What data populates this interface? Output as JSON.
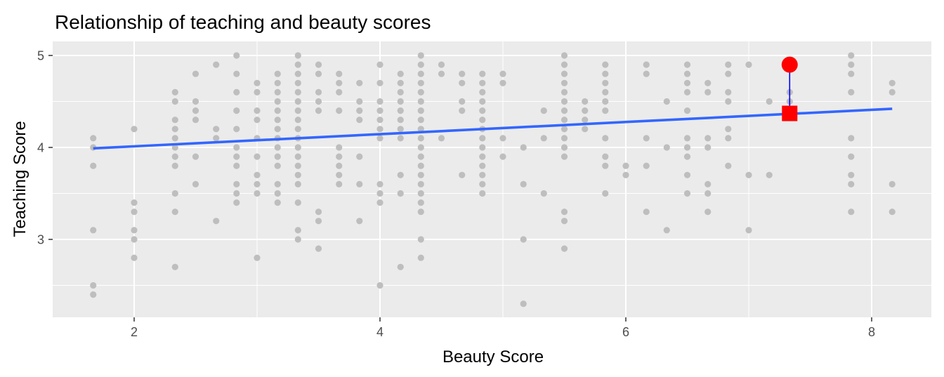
{
  "chart_data": {
    "type": "scatter",
    "title": "Relationship of teaching and beauty scores",
    "xlabel": "Beauty Score",
    "ylabel": "Teaching Score",
    "xlim": [
      1.34,
      8.5
    ],
    "ylim": [
      2.15,
      5.15
    ],
    "xticks": [
      2,
      4,
      6,
      8
    ],
    "yticks": [
      3,
      4,
      5
    ],
    "grid": true,
    "legend": "none",
    "colors": {
      "panel": "#ebebeb",
      "grid": "#ffffff",
      "points": "#bebebe",
      "fit_line": "#3366ff",
      "highlight_observed": "#ff0000",
      "highlight_fitted": "#ff0000",
      "residual_arrow": "#0000ff"
    },
    "columns": [
      {
        "x": 1.667,
        "y": [
          4.1,
          4.0,
          3.8,
          3.1,
          2.5,
          2.4
        ]
      },
      {
        "x": 2.0,
        "y": [
          4.2,
          3.4,
          3.3,
          3.1,
          3.0,
          2.8
        ]
      },
      {
        "x": 2.333,
        "y": [
          4.6,
          4.5,
          4.3,
          4.2,
          4.1,
          4.0,
          3.9,
          3.8,
          3.5,
          3.3,
          2.7
        ]
      },
      {
        "x": 2.5,
        "y": [
          4.8,
          4.5,
          4.4,
          4.3,
          3.9,
          3.6
        ]
      },
      {
        "x": 2.667,
        "y": [
          4.9,
          4.2,
          4.1,
          3.2
        ]
      },
      {
        "x": 2.833,
        "y": [
          5.0,
          4.8,
          4.6,
          4.4,
          4.2,
          4.0,
          3.9,
          3.8,
          3.6,
          3.5,
          3.4
        ]
      },
      {
        "x": 3.0,
        "y": [
          4.7,
          4.6,
          4.4,
          4.3,
          4.1,
          3.9,
          3.7,
          3.6,
          3.5,
          2.8
        ]
      },
      {
        "x": 3.167,
        "y": [
          4.8,
          4.7,
          4.6,
          4.5,
          4.4,
          4.3,
          4.2,
          4.1,
          4.0,
          3.9,
          3.8,
          3.6,
          3.5,
          3.4
        ]
      },
      {
        "x": 3.333,
        "y": [
          5.0,
          4.9,
          4.8,
          4.7,
          4.6,
          4.5,
          4.4,
          4.3,
          4.2,
          4.1,
          4.0,
          3.9,
          3.8,
          3.7,
          3.6,
          3.4,
          3.1,
          3.0
        ]
      },
      {
        "x": 3.5,
        "y": [
          4.9,
          4.8,
          4.6,
          4.5,
          4.4,
          3.3,
          3.2,
          2.9
        ]
      },
      {
        "x": 3.667,
        "y": [
          4.8,
          4.7,
          4.6,
          4.4,
          4.0,
          3.9,
          3.8,
          3.7,
          3.6
        ]
      },
      {
        "x": 3.833,
        "y": [
          4.7,
          4.5,
          4.4,
          4.3,
          3.9,
          3.6,
          3.2
        ]
      },
      {
        "x": 4.0,
        "y": [
          4.9,
          4.7,
          4.5,
          4.4,
          4.3,
          4.2,
          4.1,
          3.6,
          3.5,
          3.4,
          2.5
        ]
      },
      {
        "x": 4.167,
        "y": [
          4.8,
          4.7,
          4.6,
          4.5,
          4.4,
          4.3,
          4.2,
          4.1,
          3.7,
          3.5,
          2.7
        ]
      },
      {
        "x": 4.333,
        "y": [
          5.0,
          4.9,
          4.8,
          4.7,
          4.6,
          4.5,
          4.4,
          4.3,
          4.2,
          4.1,
          4.0,
          3.9,
          3.8,
          3.7,
          3.6,
          3.5,
          3.4,
          3.3,
          3.0,
          2.8
        ]
      },
      {
        "x": 4.5,
        "y": [
          4.9,
          4.8,
          4.1
        ]
      },
      {
        "x": 4.667,
        "y": [
          4.8,
          4.7,
          4.5,
          4.4,
          3.7
        ]
      },
      {
        "x": 4.833,
        "y": [
          4.8,
          4.7,
          4.6,
          4.5,
          4.4,
          4.3,
          4.2,
          4.1,
          4.0,
          3.9,
          3.8,
          3.7,
          3.6,
          3.5
        ]
      },
      {
        "x": 5.0,
        "y": [
          4.8,
          4.7,
          4.1,
          3.9
        ]
      },
      {
        "x": 5.167,
        "y": [
          4.0,
          3.6,
          3.0,
          2.3
        ]
      },
      {
        "x": 5.333,
        "y": [
          4.4,
          4.1,
          3.5
        ]
      },
      {
        "x": 5.5,
        "y": [
          5.0,
          4.9,
          4.8,
          4.7,
          4.6,
          4.5,
          4.4,
          4.3,
          4.2,
          4.1,
          4.0,
          3.9,
          3.3,
          3.2,
          2.9
        ]
      },
      {
        "x": 5.667,
        "y": [
          4.5,
          4.4,
          4.3,
          4.2
        ]
      },
      {
        "x": 5.833,
        "y": [
          4.9,
          4.8,
          4.7,
          4.6,
          4.5,
          4.4,
          4.1,
          3.9,
          3.8,
          3.5
        ]
      },
      {
        "x": 6.0,
        "y": [
          3.8,
          3.7
        ]
      },
      {
        "x": 6.167,
        "y": [
          4.9,
          4.8,
          4.1,
          3.8,
          3.3
        ]
      },
      {
        "x": 6.333,
        "y": [
          4.5,
          4.0,
          3.1
        ]
      },
      {
        "x": 6.5,
        "y": [
          4.9,
          4.8,
          4.7,
          4.6,
          4.4,
          4.1,
          4.0,
          3.9,
          3.7,
          3.5
        ]
      },
      {
        "x": 6.667,
        "y": [
          4.7,
          4.6,
          4.1,
          4.0,
          3.6,
          3.5,
          3.3
        ]
      },
      {
        "x": 6.833,
        "y": [
          4.9,
          4.8,
          4.6,
          4.5,
          4.2,
          4.1,
          3.8
        ]
      },
      {
        "x": 7.0,
        "y": [
          4.9,
          3.7,
          3.1
        ]
      },
      {
        "x": 7.167,
        "y": [
          4.5,
          3.7
        ]
      },
      {
        "x": 7.333,
        "y": [
          4.6,
          4.5
        ]
      },
      {
        "x": 7.833,
        "y": [
          5.0,
          4.9,
          4.8,
          4.6,
          4.1,
          3.9,
          3.7,
          3.6,
          3.3
        ]
      },
      {
        "x": 8.167,
        "y": [
          4.7,
          4.6,
          3.6,
          3.3
        ]
      }
    ],
    "fit_line": {
      "x": [
        1.667,
        8.167
      ],
      "y": [
        3.99,
        4.42
      ]
    },
    "highlight": {
      "x": 7.333,
      "observed": 4.9,
      "fitted": 4.37
    }
  }
}
